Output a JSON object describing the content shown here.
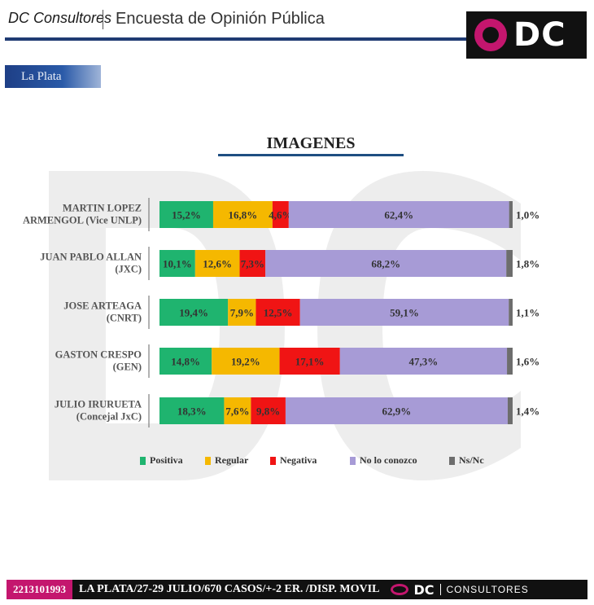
{
  "header": {
    "brand": "DC Consultores",
    "title": "Encuesta de Opinión Pública",
    "logo_text": "DC",
    "city": "La Plata"
  },
  "colors": {
    "positiva": "#1fb46f",
    "regular": "#f5b800",
    "negativa": "#f01414",
    "no_lo_conozco": "#a79bd6",
    "ns_nc": "#6d6d6d",
    "accent": "#c4166e",
    "navy": "#1f3b73"
  },
  "chart_data": {
    "type": "bar",
    "stacked": true,
    "orientation": "horizontal",
    "title": "IMAGENES",
    "categories": [
      [
        "MARTIN LOPEZ",
        "ARMENGOL (Vice UNLP)"
      ],
      [
        "JUAN PABLO ALLAN",
        "(JXC)"
      ],
      [
        "JOSE ARTEAGA",
        "(CNRT)"
      ],
      [
        "GASTON CRESPO",
        "(GEN)"
      ],
      [
        "JULIO IRURUETA",
        "(Concejal JxC)"
      ]
    ],
    "series": [
      {
        "name": "Positiva",
        "color": "#1fb46f",
        "values": [
          15.2,
          10.1,
          19.4,
          14.8,
          18.3
        ],
        "labels": [
          "15,2%",
          "10,1%",
          "19,4%",
          "14,8%",
          "18,3%"
        ]
      },
      {
        "name": "Regular",
        "color": "#f5b800",
        "values": [
          16.8,
          12.6,
          7.9,
          19.2,
          7.6
        ],
        "labels": [
          "16,8%",
          "12,6%",
          "7,9%",
          "19,2%",
          "7,6%"
        ]
      },
      {
        "name": "Negativa",
        "color": "#f01414",
        "values": [
          4.6,
          7.3,
          12.5,
          17.1,
          9.8
        ],
        "labels": [
          "4,6%",
          "7,3%",
          "12,5%",
          "17,1%",
          "9,8%"
        ]
      },
      {
        "name": "No lo conozco",
        "color": "#a79bd6",
        "values": [
          62.4,
          68.2,
          59.1,
          47.3,
          62.9
        ],
        "labels": [
          "62,4%",
          "68,2%",
          "59,1%",
          "47,3%",
          "62,9%"
        ]
      },
      {
        "name": "Ns/Nc",
        "color": "#6d6d6d",
        "values": [
          1.0,
          1.8,
          1.1,
          1.6,
          1.4
        ],
        "labels": [
          "1,0%",
          "1,8%",
          "1,1%",
          "1,6%",
          "1,4%"
        ]
      }
    ],
    "legend_position": "bottom"
  },
  "footer": {
    "phone": "2213101993",
    "info": "LA PLATA/27-29 JULIO/670 CASOS/+-2 ER. /DISP. MOVIL",
    "brand": "DC",
    "brand_sub": "CONSULTORES"
  }
}
